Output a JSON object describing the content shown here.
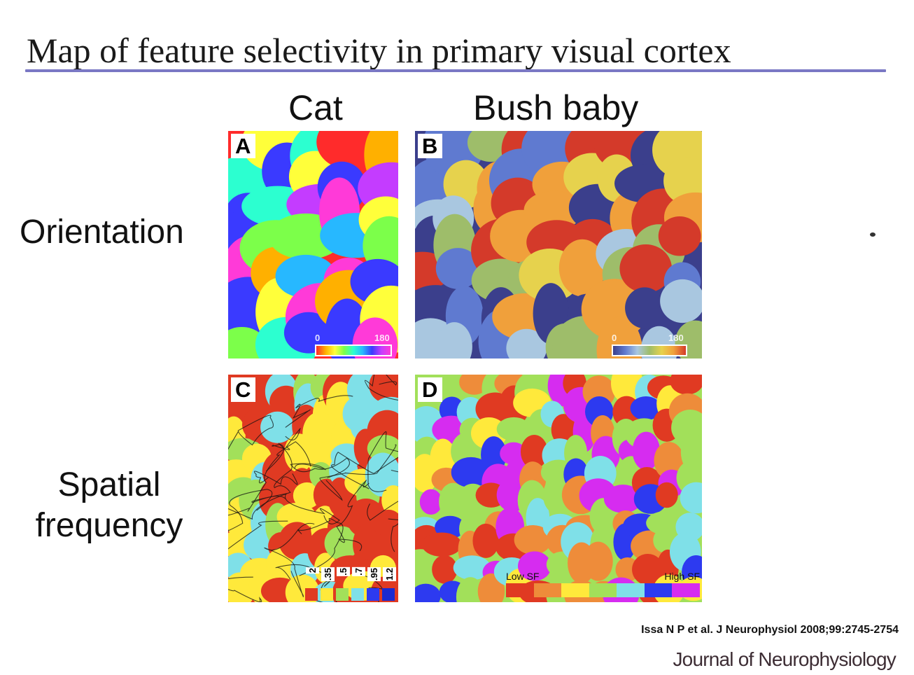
{
  "slide": {
    "title": "Map of feature selectivity in primary visual cortex"
  },
  "columns": {
    "cat": "Cat",
    "bush_baby": "Bush baby"
  },
  "rows": {
    "orientation": "Orientation",
    "spatial_line1": "Spatial",
    "spatial_line2": "frequency"
  },
  "panels": {
    "a": {
      "label": "A",
      "scale_min": "0",
      "scale_max": "180"
    },
    "b": {
      "label": "B",
      "scale_min": "0",
      "scale_max": "180"
    },
    "c": {
      "label": "C",
      "key_values": [
        "2",
        ".35",
        ".5",
        ".7",
        ".95",
        "1.2"
      ]
    },
    "d": {
      "label": "D",
      "low": "Low SF",
      "high": "High SF"
    }
  },
  "colors": {
    "cat_orientation": [
      "#ff2b2b",
      "#ffb000",
      "#ffff3a",
      "#7cff4a",
      "#2cffd0",
      "#27b8ff",
      "#3a3aff",
      "#c43cff",
      "#ff3ad8"
    ],
    "bushbaby_orientation": [
      "#3b3f8c",
      "#5f7ad0",
      "#a9c7e0",
      "#9ebd6a",
      "#e6d24d",
      "#f0a03b",
      "#d43a2a"
    ],
    "spatial_frequency": [
      "#e03a22",
      "#ee8c3a",
      "#ffe93b",
      "#a2e05a",
      "#7fe0e8",
      "#2d3af0",
      "#d62cf0"
    ]
  },
  "citation": "Issa N P et al. J Neurophysiol 2008;99:2745-2754",
  "journal": "Journal of Neurophysiology"
}
